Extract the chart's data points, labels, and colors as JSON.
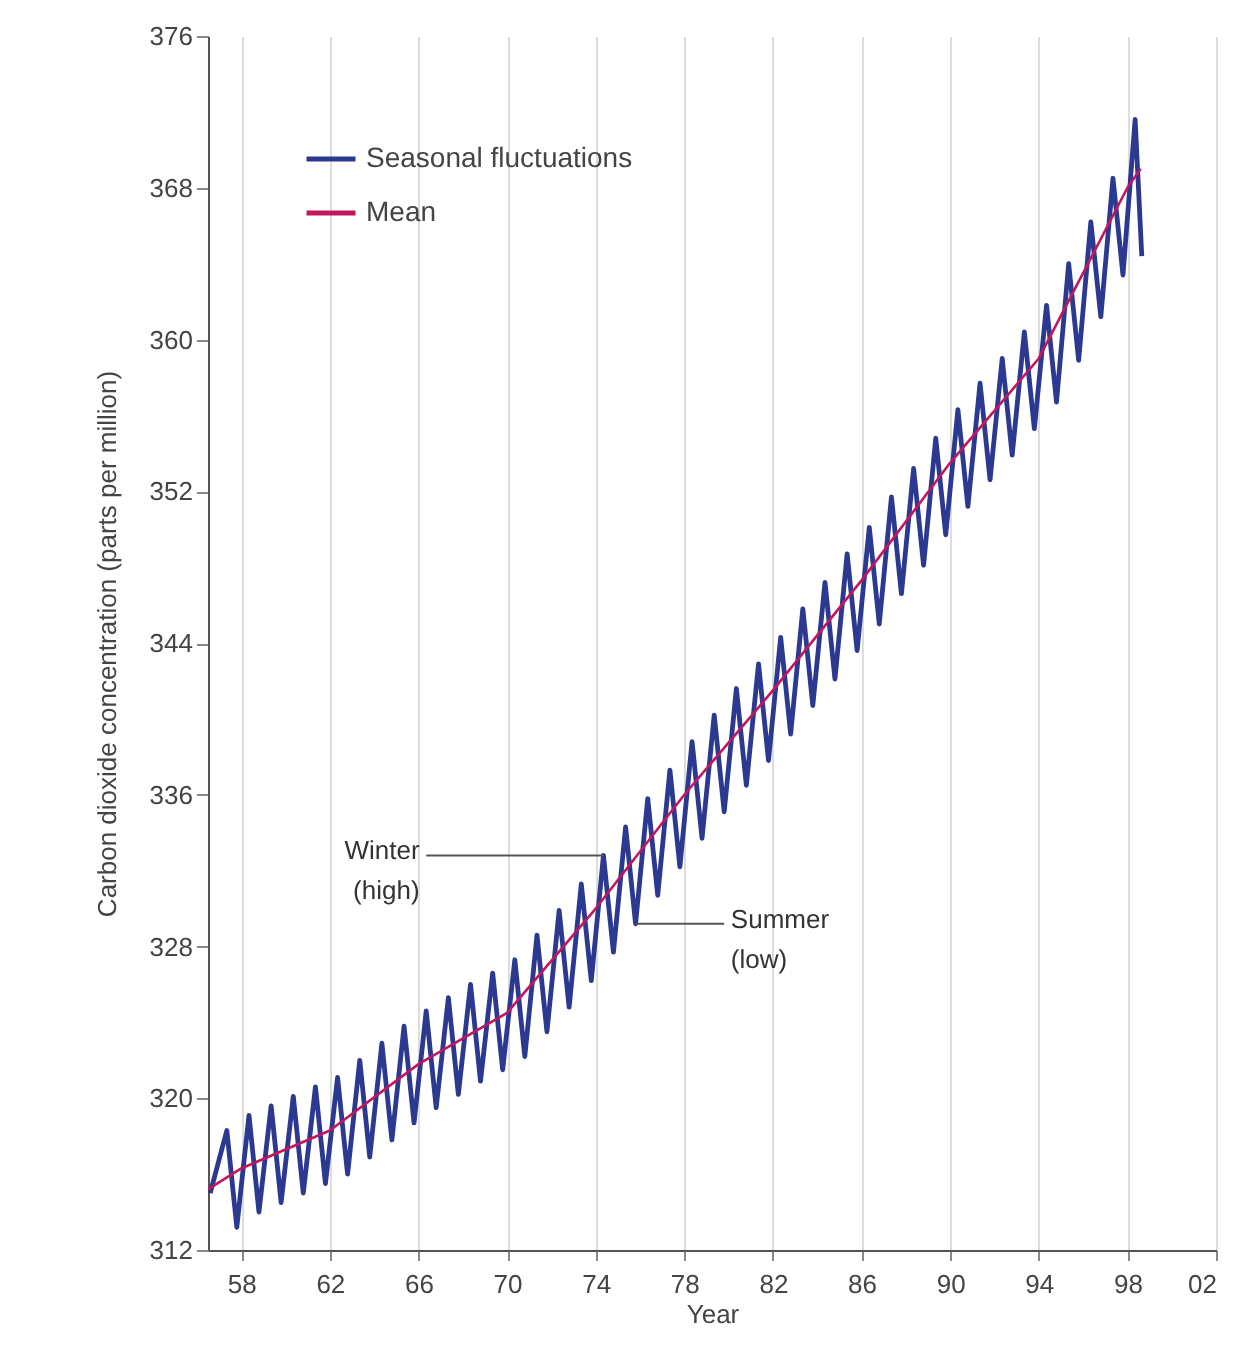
{
  "chart_data": {
    "type": "line",
    "xlabel": "Year",
    "ylabel": "Carbon dioxide concentration (parts per million)",
    "xlim": [
      1956.5,
      2002
    ],
    "xticks": [
      {
        "value": 1958,
        "label": "58"
      },
      {
        "value": 1962,
        "label": "62"
      },
      {
        "value": 1966,
        "label": "66"
      },
      {
        "value": 1970,
        "label": "70"
      },
      {
        "value": 1974,
        "label": "74"
      },
      {
        "value": 1978,
        "label": "78"
      },
      {
        "value": 1982,
        "label": "82"
      },
      {
        "value": 1986,
        "label": "86"
      },
      {
        "value": 1990,
        "label": "90"
      },
      {
        "value": 1994,
        "label": "94"
      },
      {
        "value": 1998,
        "label": "98"
      },
      {
        "value": 2002,
        "label": "02"
      }
    ],
    "ylim": [
      312,
      376
    ],
    "yticks": [
      312,
      320,
      328,
      336,
      344,
      352,
      360,
      368,
      376
    ],
    "grid": "x",
    "legend": "top left",
    "line_style": "solid",
    "series": [
      {
        "name": "Seasonal fluctuations",
        "color": "#2b3990",
        "x": [
          1956.6,
          1957.35,
          1957.8,
          1958.35,
          1958.8,
          1959.35,
          1959.8,
          1960.35,
          1960.8,
          1961.35,
          1961.8,
          1962.35,
          1962.8,
          1963.35,
          1963.8,
          1964.35,
          1964.8,
          1965.35,
          1965.8,
          1966.35,
          1966.8,
          1967.35,
          1967.8,
          1968.35,
          1968.8,
          1969.35,
          1969.8,
          1970.35,
          1970.8,
          1971.35,
          1971.8,
          1972.35,
          1972.8,
          1973.35,
          1973.8,
          1974.35,
          1974.8,
          1975.35,
          1975.8,
          1976.35,
          1976.8,
          1977.35,
          1977.8,
          1978.35,
          1978.8,
          1979.35,
          1979.8,
          1980.35,
          1980.8,
          1981.35,
          1981.8,
          1982.35,
          1982.8,
          1983.35,
          1983.8,
          1984.35,
          1984.8,
          1985.35,
          1985.8,
          1986.35,
          1986.8,
          1987.35,
          1987.8,
          1988.35,
          1988.8,
          1989.35,
          1989.8,
          1990.35,
          1990.8,
          1991.35,
          1991.8,
          1992.35,
          1992.8,
          1993.35,
          1993.8,
          1994.35,
          1994.8,
          1995.35,
          1995.8,
          1996.35,
          1996.8,
          1997.35,
          1997.8,
          1998.35,
          1998.65
        ],
        "values": [
          315.0,
          318.3,
          313.2,
          319.1,
          314.0,
          319.6,
          314.5,
          320.1,
          315.0,
          320.6,
          315.5,
          321.1,
          316.0,
          322.0,
          316.9,
          322.9,
          317.8,
          323.8,
          318.7,
          324.6,
          319.5,
          325.3,
          320.2,
          326.0,
          320.9,
          326.6,
          321.5,
          327.3,
          322.2,
          328.6,
          323.5,
          329.9,
          324.8,
          331.3,
          326.2,
          332.8,
          327.7,
          334.3,
          329.2,
          335.8,
          330.7,
          337.3,
          332.2,
          338.8,
          333.7,
          340.2,
          335.1,
          341.6,
          336.5,
          342.9,
          337.8,
          344.3,
          339.2,
          345.8,
          340.7,
          347.2,
          342.1,
          348.7,
          343.6,
          350.1,
          345.0,
          351.7,
          346.6,
          353.2,
          348.1,
          354.8,
          349.7,
          356.3,
          351.2,
          357.7,
          352.6,
          359.0,
          353.9,
          360.4,
          355.3,
          361.8,
          356.7,
          364.0,
          358.9,
          366.2,
          361.2,
          368.5,
          363.4,
          371.6,
          364.4
        ]
      },
      {
        "name": "Mean",
        "color": "#c2185b",
        "x": [
          1956.5,
          1958,
          1962,
          1966,
          1970,
          1974,
          1978,
          1982,
          1986,
          1990,
          1994,
          1998,
          1998.6
        ],
        "values": [
          315.2,
          316.3,
          318.3,
          321.8,
          324.5,
          330.0,
          336.0,
          341.5,
          347.3,
          353.5,
          359.0,
          368.0,
          369.0
        ]
      }
    ],
    "annotations": [
      {
        "text": "Winter (high)",
        "x": 1974.35,
        "y": 332.8
      },
      {
        "text": "Summer (low)",
        "x": 1975.8,
        "y": 329.2
      }
    ]
  }
}
